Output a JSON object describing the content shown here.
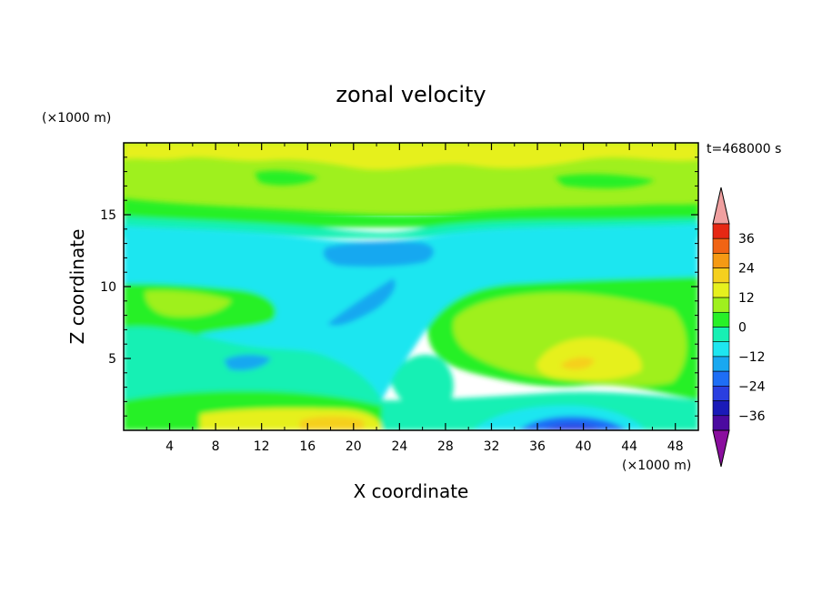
{
  "chart_data": {
    "type": "heatmap",
    "title": "zonal velocity",
    "xlabel": "X coordinate",
    "ylabel": "Z coordinate",
    "x_unit": "(×1000 m)",
    "y_unit": "(×1000 m)",
    "time_label": "t=468000 s",
    "xlim": [
      0,
      50
    ],
    "ylim": [
      0,
      20
    ],
    "x_ticks": [
      "4",
      "8",
      "12",
      "16",
      "20",
      "24",
      "28",
      "32",
      "36",
      "40",
      "44",
      "48"
    ],
    "y_ticks": [
      "5",
      "10",
      "15"
    ],
    "colorbar": {
      "labels": [
        "36",
        "24",
        "12",
        "0",
        "-12",
        "-24",
        "-36"
      ],
      "levels": [
        -42,
        -36,
        -30,
        -24,
        -18,
        -12,
        -6,
        0,
        6,
        12,
        18,
        24,
        30,
        36,
        42
      ],
      "colors": [
        "#8a0e9e",
        "#4b0aa0",
        "#1a1ab8",
        "#2a3fe0",
        "#1e6ef5",
        "#19a8f0",
        "#1ee6f0",
        "#17f0b4",
        "#28f028",
        "#9ff01e",
        "#e6f01e",
        "#f5d01e",
        "#f59a14",
        "#f06414",
        "#e62814",
        "#f0a0a0"
      ],
      "extend": "both"
    },
    "regions": [
      {
        "level": 12,
        "note": "yellow-green layer above z≈15"
      },
      {
        "level": 18,
        "note": "yellow patches near z≈18-19"
      },
      {
        "level": 6,
        "note": "green band z≈14-15"
      },
      {
        "level": -6,
        "note": "cyan band z≈9-14"
      },
      {
        "level": -18,
        "note": "blue jet core x≈23-28, z≈12"
      },
      {
        "level": 6,
        "note": "green region lower right x≈30-50, z≈4-10"
      },
      {
        "level": 18,
        "note": "yellow patch near x≈40, z≈5"
      },
      {
        "level": -30,
        "note": "blue near surface x≈36-42"
      },
      {
        "level": 24,
        "note": "orange near surface x≈18-22"
      }
    ]
  }
}
